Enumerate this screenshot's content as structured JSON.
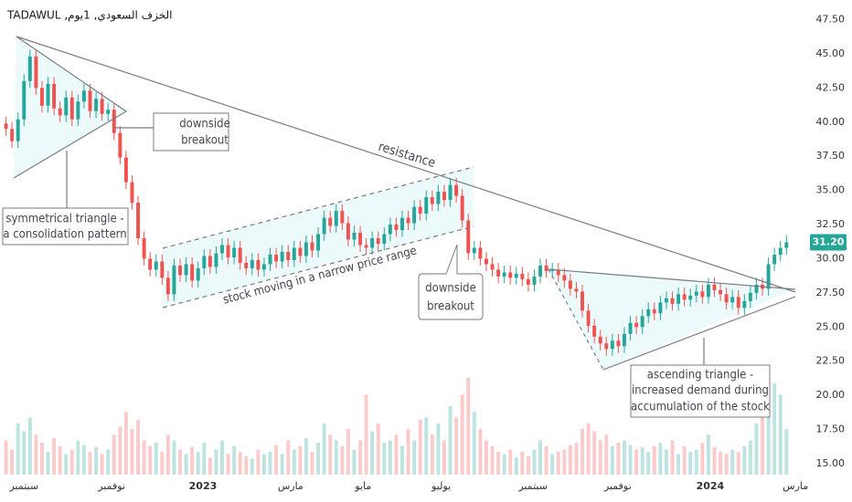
{
  "chart_data": {
    "type": "candlestick",
    "title": "الخزف السعودي, 1يوم, TADAWUL",
    "up_color": "#26a69a",
    "down_color": "#ef5350",
    "open": [
      39.9,
      39.5,
      38.6,
      40.2,
      43.0,
      44.8,
      42.5,
      41.2,
      42.8,
      41.0,
      40.5,
      41.8,
      40.2,
      41.5,
      42.3,
      40.8,
      41.7,
      40.6,
      40.9,
      39.2,
      37.4,
      35.6,
      34.1,
      31.5,
      30.0,
      29.2,
      29.8,
      28.6,
      27.4,
      29.5,
      28.8,
      29.6,
      28.4,
      29.3,
      30.2,
      29.4,
      30.4,
      31.0,
      30.1,
      30.8,
      29.7,
      29.3,
      29.9,
      29.2,
      29.6,
      30.3,
      29.8,
      30.5,
      29.9,
      30.8,
      30.2,
      31.2,
      30.6,
      31.8,
      33.0,
      32.4,
      33.5,
      32.6,
      31.4,
      31.9,
      31.0,
      30.8,
      31.5,
      31.1,
      31.8,
      32.5,
      32.1,
      33.0,
      32.6,
      33.8,
      33.3,
      34.5,
      34.0,
      34.9,
      34.3,
      35.4,
      34.6,
      32.8,
      30.4,
      30.8,
      30.0,
      29.6,
      29.2,
      28.7,
      29.0,
      28.6,
      28.9,
      28.5,
      28.1,
      28.7,
      29.5,
      29.1,
      29.2,
      28.8,
      28.4,
      27.8,
      27.6,
      26.2,
      25.1,
      24.3,
      23.8,
      23.4,
      24.0,
      23.6,
      24.5,
      25.3,
      25.0,
      25.8,
      26.3,
      26.0,
      26.8,
      27.1,
      26.7,
      27.4,
      27.0,
      27.3,
      27.6,
      27.2,
      28.1,
      27.7,
      27.4,
      26.8,
      27.2,
      26.4,
      26.9,
      27.5,
      28.1,
      27.8,
      29.6,
      30.3,
      30.8
    ],
    "high": [
      40.4,
      40.0,
      40.7,
      43.5,
      45.3,
      45.3,
      43.0,
      43.3,
      43.3,
      41.5,
      42.3,
      42.3,
      42.0,
      42.8,
      42.8,
      42.2,
      42.2,
      41.4,
      41.4,
      39.7,
      37.9,
      36.1,
      34.6,
      32.0,
      30.5,
      30.3,
      30.3,
      29.1,
      30.0,
      30.0,
      30.1,
      30.1,
      29.8,
      30.7,
      30.7,
      30.9,
      31.5,
      31.5,
      31.3,
      31.3,
      30.2,
      30.4,
      30.4,
      30.1,
      30.8,
      30.8,
      31.0,
      31.0,
      31.3,
      31.3,
      31.7,
      31.7,
      32.3,
      33.5,
      33.5,
      34.0,
      34.0,
      33.1,
      32.4,
      32.4,
      31.5,
      32.0,
      32.0,
      32.3,
      33.0,
      33.0,
      33.5,
      33.5,
      34.3,
      34.3,
      35.0,
      35.0,
      35.4,
      35.4,
      35.9,
      35.9,
      35.1,
      33.3,
      31.3,
      31.3,
      30.5,
      30.1,
      29.7,
      29.5,
      29.5,
      29.4,
      29.4,
      29.0,
      29.2,
      30.0,
      30.0,
      29.7,
      29.7,
      29.3,
      28.9,
      28.3,
      28.1,
      26.7,
      25.6,
      24.8,
      24.3,
      24.5,
      24.5,
      25.0,
      25.8,
      25.8,
      26.3,
      26.8,
      26.8,
      27.3,
      27.6,
      27.6,
      27.9,
      27.9,
      27.8,
      28.1,
      28.1,
      28.6,
      28.6,
      28.2,
      27.9,
      27.7,
      27.7,
      27.4,
      28.0,
      28.6,
      28.6,
      30.1,
      30.8,
      31.3,
      31.7
    ],
    "low": [
      39.0,
      38.1,
      38.1,
      39.7,
      42.5,
      42.0,
      40.7,
      40.7,
      40.5,
      40.0,
      40.0,
      39.7,
      39.7,
      41.0,
      40.3,
      40.3,
      40.1,
      40.1,
      38.7,
      36.9,
      35.1,
      33.6,
      31.0,
      29.5,
      28.7,
      28.7,
      28.1,
      26.9,
      26.9,
      28.3,
      28.3,
      27.9,
      27.9,
      28.8,
      28.9,
      28.9,
      29.9,
      29.6,
      29.6,
      29.2,
      28.8,
      28.8,
      28.7,
      28.7,
      29.1,
      29.3,
      29.3,
      29.4,
      29.4,
      29.7,
      29.7,
      30.1,
      30.1,
      31.3,
      31.9,
      31.9,
      32.1,
      30.9,
      30.9,
      30.5,
      30.3,
      30.3,
      30.6,
      30.6,
      31.3,
      31.6,
      31.6,
      32.1,
      32.1,
      32.8,
      32.8,
      33.5,
      33.5,
      33.8,
      33.8,
      34.1,
      32.3,
      29.9,
      29.9,
      29.5,
      29.1,
      28.7,
      28.2,
      28.2,
      28.1,
      28.1,
      28.0,
      27.6,
      27.6,
      28.2,
      28.6,
      28.6,
      28.3,
      27.9,
      27.3,
      27.1,
      25.7,
      24.6,
      23.8,
      23.3,
      22.9,
      22.9,
      23.1,
      23.1,
      24.0,
      24.5,
      24.5,
      25.3,
      25.5,
      25.5,
      26.3,
      26.2,
      26.2,
      26.5,
      26.5,
      26.8,
      26.7,
      26.7,
      27.2,
      26.9,
      26.3,
      26.3,
      25.9,
      25.9,
      26.4,
      27.0,
      27.3,
      27.3,
      29.1,
      29.8,
      30.3
    ],
    "close": [
      39.5,
      38.6,
      40.2,
      43.0,
      44.8,
      42.5,
      41.2,
      42.8,
      41.0,
      40.5,
      41.8,
      40.2,
      41.5,
      42.3,
      40.8,
      41.7,
      40.6,
      40.9,
      39.2,
      37.4,
      35.6,
      34.1,
      31.5,
      30.0,
      29.2,
      29.8,
      28.6,
      27.4,
      29.5,
      28.8,
      29.6,
      28.4,
      29.3,
      30.2,
      29.4,
      30.4,
      31.0,
      30.1,
      30.8,
      29.7,
      29.3,
      29.9,
      29.2,
      29.6,
      30.3,
      29.8,
      30.5,
      29.9,
      30.8,
      30.2,
      31.2,
      30.6,
      31.8,
      33.0,
      32.4,
      33.5,
      32.6,
      31.4,
      31.9,
      31.0,
      30.8,
      31.5,
      31.1,
      31.8,
      32.5,
      32.1,
      33.0,
      32.6,
      33.8,
      33.3,
      34.5,
      34.0,
      34.9,
      34.3,
      35.4,
      34.6,
      32.8,
      30.4,
      30.8,
      30.0,
      29.6,
      29.2,
      28.7,
      29.0,
      28.6,
      28.9,
      28.5,
      28.1,
      28.7,
      29.5,
      29.1,
      29.2,
      28.8,
      28.4,
      27.8,
      27.6,
      26.2,
      25.1,
      24.3,
      23.8,
      23.4,
      24.0,
      23.6,
      24.5,
      25.3,
      25.0,
      25.8,
      26.3,
      26.0,
      26.8,
      27.1,
      26.7,
      27.4,
      27.0,
      27.3,
      27.6,
      27.2,
      28.1,
      27.7,
      27.4,
      26.8,
      27.2,
      26.4,
      26.9,
      27.5,
      28.1,
      27.8,
      29.6,
      30.3,
      30.8,
      31.2
    ],
    "volume": [
      30,
      22,
      45,
      38,
      50,
      35,
      28,
      20,
      32,
      25,
      18,
      22,
      30,
      26,
      20,
      24,
      18,
      22,
      35,
      42,
      55,
      40,
      48,
      30,
      25,
      28,
      20,
      35,
      30,
      22,
      18,
      24,
      20,
      28,
      15,
      22,
      30,
      18,
      25,
      20,
      16,
      14,
      22,
      18,
      20,
      26,
      18,
      30,
      22,
      25,
      32,
      20,
      28,
      45,
      35,
      30,
      25,
      40,
      22,
      30,
      70,
      38,
      45,
      28,
      30,
      35,
      25,
      40,
      30,
      48,
      50,
      35,
      45,
      30,
      60,
      50,
      70,
      85,
      55,
      40,
      30,
      25,
      20,
      18,
      22,
      15,
      20,
      16,
      22,
      30,
      25,
      18,
      20,
      22,
      26,
      28,
      40,
      45,
      38,
      30,
      35,
      25,
      28,
      30,
      26,
      22,
      24,
      20,
      25,
      28,
      22,
      30,
      18,
      25,
      20,
      22,
      28,
      35,
      24,
      20,
      18,
      22,
      20,
      25,
      30,
      45,
      60,
      95,
      80,
      70,
      40
    ],
    "xlim": [
      -1,
      133
    ],
    "xticks": [
      {
        "value": 3,
        "label": "سبتمبر"
      },
      {
        "value": 17.6,
        "label": "نوفمبر"
      },
      {
        "value": 32.8,
        "label": "2023"
      },
      {
        "value": 47.4,
        "label": "مارس"
      },
      {
        "value": 59.5,
        "label": "مايو"
      },
      {
        "value": 72.5,
        "label": "يوليو"
      },
      {
        "value": 87.8,
        "label": "سبتمبر"
      },
      {
        "value": 101.9,
        "label": "نوفمبر"
      },
      {
        "value": 117.3,
        "label": "2024"
      },
      {
        "value": 131.5,
        "label": "مارس"
      }
    ],
    "ylim": [
      14.2,
      48.6
    ],
    "yticks": [
      {
        "value": 15,
        "label": "15.00"
      },
      {
        "value": 17.5,
        "label": "17.50"
      },
      {
        "value": 20,
        "label": "20.00"
      },
      {
        "value": 22.5,
        "label": "22.50"
      },
      {
        "value": 25,
        "label": "25.00"
      },
      {
        "value": 27.5,
        "label": "27.50"
      },
      {
        "value": 30,
        "label": "30.00"
      },
      {
        "value": 32.5,
        "label": "32.50"
      },
      {
        "value": 35,
        "label": "35.00"
      },
      {
        "value": 37.5,
        "label": "37.50"
      },
      {
        "value": 40,
        "label": "40.00"
      },
      {
        "value": 42.5,
        "label": "42.50"
      },
      {
        "value": 45,
        "label": "45.00"
      },
      {
        "value": 47.5,
        "label": "47.50"
      }
    ],
    "last_price": {
      "value": 31.2,
      "label": "31.20"
    },
    "annotations": {
      "symmetrical_triangle": [
        "symmetrical triangle  -",
        "a consolidation pattern"
      ],
      "downside_breakout_1": [
        "downside",
        "breakout"
      ],
      "resistance": "resistance",
      "channel": "stock moving in a narrow price range",
      "downside_breakout_2": [
        "downside",
        "breakout"
      ],
      "ascending_triangle": [
        "ascending triangle -",
        "increased demand during",
        "accumulation of the stock"
      ]
    }
  }
}
